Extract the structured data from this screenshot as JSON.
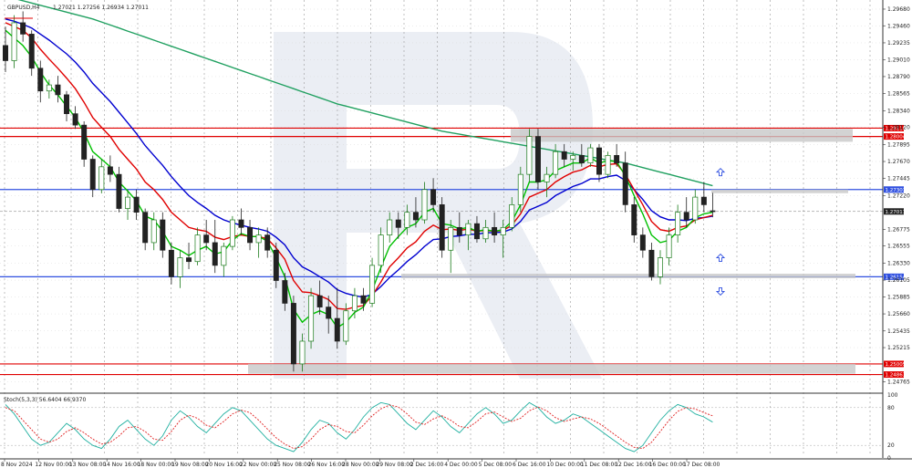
{
  "header": {
    "instrument": "GBPUSD,H4",
    "ohlc": "1.27021 1.27256 1.26934 1.27011",
    "stoch_label": "Stoch(5,3,3) 56.6404 66.9370"
  },
  "colors": {
    "bull": "#1a7a1a",
    "bear": "#222222",
    "ma_fast": "#00c000",
    "ma_mid": "#e00000",
    "ma_slow": "#0000d0",
    "ma_long": "#20a060",
    "level_red": "#e00000",
    "level_blue": "#3050e0",
    "stoch_main": "#20b0a0",
    "stoch_signal": "#e02020"
  },
  "chart_data": {
    "type": "candlestick",
    "ylim": [
      1.2465,
      1.298
    ],
    "price_ticks": [
      "1.29680",
      "1.29460",
      "1.29235",
      "1.29010",
      "1.28790",
      "1.28565",
      "1.28340",
      "1.28120",
      "1.27895",
      "1.27670",
      "1.27445",
      "1.27220",
      "1.26775",
      "1.26555",
      "1.26330",
      "1.26105",
      "1.25885",
      "1.25660",
      "1.25435",
      "1.25215",
      "1.24765"
    ],
    "price_tick_values": [
      1.2968,
      1.2946,
      1.29235,
      1.2901,
      1.2879,
      1.28565,
      1.2834,
      1.2812,
      1.27895,
      1.2767,
      1.27445,
      1.2722,
      1.26775,
      1.26555,
      1.2633,
      1.26105,
      1.25885,
      1.2566,
      1.25435,
      1.25215,
      1.24765
    ],
    "time_labels": [
      "8 Nov 2024",
      "12 Nov 00:00",
      "13 Nov 08:00",
      "14 Nov 16:00",
      "18 Nov 00:00",
      "19 Nov 08:00",
      "20 Nov 16:00",
      "22 Nov 00:00",
      "25 Nov 08:00",
      "26 Nov 16:00",
      "28 Nov 00:00",
      "29 Nov 08:00",
      "2 Dec 16:00",
      "4 Dec 00:00",
      "5 Dec 08:00",
      "6 Dec 16:00",
      "10 Dec 00:00",
      "11 Dec 08:00",
      "12 Dec 16:00",
      "16 Dec 00:00",
      "17 Dec 08:00"
    ],
    "levels": [
      {
        "value": 1.2811,
        "label": "1.28110",
        "kind": "resistance"
      },
      {
        "value": 1.28,
        "label": "1.28004",
        "kind": "resistance"
      },
      {
        "value": 1.273,
        "label": "1.27303",
        "kind": "resistance"
      },
      {
        "value": 1.2615,
        "label": "1.26154",
        "kind": "support"
      },
      {
        "value": 1.25,
        "label": "1.25005",
        "kind": "support"
      },
      {
        "value": 1.2486,
        "label": "1.24863",
        "kind": "support"
      }
    ],
    "current_price": {
      "value": 1.27011,
      "label": "1.27011"
    },
    "candles": [
      [
        1.292,
        1.2945,
        1.2885,
        1.29
      ],
      [
        1.29,
        1.296,
        1.289,
        1.295
      ],
      [
        1.295,
        1.2965,
        1.2925,
        1.2935
      ],
      [
        1.2935,
        1.294,
        1.288,
        1.289
      ],
      [
        1.289,
        1.29,
        1.2845,
        1.286
      ],
      [
        1.286,
        1.2875,
        1.285,
        1.2868
      ],
      [
        1.2868,
        1.288,
        1.2845,
        1.2855
      ],
      [
        1.2855,
        1.286,
        1.282,
        1.283
      ],
      [
        1.283,
        1.284,
        1.281,
        1.2815
      ],
      [
        1.2815,
        1.282,
        1.276,
        1.277
      ],
      [
        1.277,
        1.2775,
        1.272,
        1.273
      ],
      [
        1.273,
        1.277,
        1.2725,
        1.276
      ],
      [
        1.276,
        1.2775,
        1.274,
        1.275
      ],
      [
        1.275,
        1.276,
        1.27,
        1.2705
      ],
      [
        1.2705,
        1.273,
        1.269,
        1.272
      ],
      [
        1.272,
        1.273,
        1.269,
        1.27
      ],
      [
        1.27,
        1.2705,
        1.265,
        1.266
      ],
      [
        1.266,
        1.27,
        1.265,
        1.269
      ],
      [
        1.269,
        1.27,
        1.264,
        1.265
      ],
      [
        1.265,
        1.266,
        1.2605,
        1.2615
      ],
      [
        1.2615,
        1.265,
        1.26,
        1.264
      ],
      [
        1.264,
        1.266,
        1.2625,
        1.2635
      ],
      [
        1.2635,
        1.268,
        1.263,
        1.267
      ],
      [
        1.267,
        1.269,
        1.265,
        1.266
      ],
      [
        1.266,
        1.269,
        1.262,
        1.263
      ],
      [
        1.263,
        1.266,
        1.2615,
        1.2655
      ],
      [
        1.2655,
        1.2695,
        1.265,
        1.269
      ],
      [
        1.269,
        1.2705,
        1.267,
        1.268
      ],
      [
        1.268,
        1.269,
        1.265,
        1.266
      ],
      [
        1.266,
        1.268,
        1.264,
        1.267
      ],
      [
        1.267,
        1.268,
        1.264,
        1.265
      ],
      [
        1.265,
        1.266,
        1.26,
        1.261
      ],
      [
        1.261,
        1.262,
        1.257,
        1.258
      ],
      [
        1.258,
        1.259,
        1.249,
        1.25
      ],
      [
        1.25,
        1.254,
        1.249,
        1.253
      ],
      [
        1.253,
        1.26,
        1.252,
        1.259
      ],
      [
        1.259,
        1.261,
        1.2565,
        1.2575
      ],
      [
        1.2575,
        1.259,
        1.254,
        1.256
      ],
      [
        1.256,
        1.26,
        1.252,
        1.253
      ],
      [
        1.253,
        1.258,
        1.2525,
        1.257
      ],
      [
        1.257,
        1.26,
        1.256,
        1.259
      ],
      [
        1.259,
        1.26,
        1.257,
        1.258
      ],
      [
        1.258,
        1.264,
        1.2575,
        1.263
      ],
      [
        1.263,
        1.268,
        1.262,
        1.267
      ],
      [
        1.267,
        1.27,
        1.266,
        1.269
      ],
      [
        1.269,
        1.27,
        1.2665,
        1.268
      ],
      [
        1.268,
        1.271,
        1.267,
        1.27
      ],
      [
        1.27,
        1.272,
        1.268,
        1.269
      ],
      [
        1.269,
        1.274,
        1.2685,
        1.273
      ],
      [
        1.273,
        1.2745,
        1.27,
        1.271
      ],
      [
        1.271,
        1.272,
        1.264,
        1.265
      ],
      [
        1.265,
        1.269,
        1.262,
        1.268
      ],
      [
        1.268,
        1.27,
        1.266,
        1.267
      ],
      [
        1.267,
        1.269,
        1.265,
        1.2685
      ],
      [
        1.2685,
        1.2695,
        1.266,
        1.2665
      ],
      [
        1.2665,
        1.269,
        1.266,
        1.268
      ],
      [
        1.268,
        1.27,
        1.266,
        1.267
      ],
      [
        1.267,
        1.269,
        1.264,
        1.268
      ],
      [
        1.268,
        1.272,
        1.2675,
        1.271
      ],
      [
        1.271,
        1.276,
        1.27,
        1.275
      ],
      [
        1.275,
        1.281,
        1.274,
        1.28
      ],
      [
        1.28,
        1.281,
        1.273,
        1.274
      ],
      [
        1.274,
        1.276,
        1.272,
        1.275
      ],
      [
        1.275,
        1.279,
        1.2745,
        1.278
      ],
      [
        1.278,
        1.279,
        1.276,
        1.277
      ],
      [
        1.277,
        1.278,
        1.2755,
        1.2775
      ],
      [
        1.2775,
        1.279,
        1.276,
        1.2765
      ],
      [
        1.2765,
        1.279,
        1.276,
        1.2785
      ],
      [
        1.2785,
        1.279,
        1.274,
        1.275
      ],
      [
        1.275,
        1.278,
        1.2745,
        1.2775
      ],
      [
        1.2775,
        1.279,
        1.276,
        1.2765
      ],
      [
        1.2765,
        1.278,
        1.27,
        1.271
      ],
      [
        1.271,
        1.272,
        1.266,
        1.267
      ],
      [
        1.267,
        1.268,
        1.264,
        1.265
      ],
      [
        1.265,
        1.266,
        1.261,
        1.2615
      ],
      [
        1.2615,
        1.265,
        1.2605,
        1.264
      ],
      [
        1.264,
        1.268,
        1.263,
        1.267
      ],
      [
        1.267,
        1.271,
        1.266,
        1.27
      ],
      [
        1.27,
        1.272,
        1.268,
        1.269
      ],
      [
        1.269,
        1.273,
        1.2685,
        1.272
      ],
      [
        1.272,
        1.274,
        1.27,
        1.271
      ],
      [
        1.2702,
        1.27256,
        1.26934,
        1.27011
      ]
    ],
    "ma_fast": [
      1.294,
      1.293,
      1.292,
      1.2905,
      1.2885,
      1.2868,
      1.2855,
      1.284,
      1.2825,
      1.2805,
      1.278,
      1.277,
      1.276,
      1.274,
      1.2728,
      1.2715,
      1.2695,
      1.269,
      1.2675,
      1.2655,
      1.265,
      1.2643,
      1.265,
      1.2655,
      1.2645,
      1.2648,
      1.2663,
      1.2672,
      1.2668,
      1.2668,
      1.2662,
      1.264,
      1.2615,
      1.2572,
      1.2555,
      1.2565,
      1.257,
      1.2565,
      1.2548,
      1.2555,
      1.2568,
      1.2575,
      1.2597,
      1.2627,
      1.2655,
      1.2668,
      1.268,
      1.2685,
      1.27,
      1.2705,
      1.2685,
      1.2683,
      1.2678,
      1.268,
      1.2675,
      1.2677,
      1.2675,
      1.2677,
      1.2688,
      1.271,
      1.274,
      1.274,
      1.2743,
      1.2755,
      1.276,
      1.2765,
      1.2765,
      1.2772,
      1.2765,
      1.2768,
      1.2767,
      1.2748,
      1.2722,
      1.2698,
      1.267,
      1.266,
      1.2663,
      1.2675,
      1.268,
      1.2693,
      1.2698,
      1.27
    ],
    "ma_mid": [
      1.295,
      1.2945,
      1.294,
      1.293,
      1.2915,
      1.2902,
      1.289,
      1.2877,
      1.2863,
      1.2845,
      1.2825,
      1.2812,
      1.28,
      1.2783,
      1.277,
      1.2757,
      1.274,
      1.273,
      1.2717,
      1.27,
      1.269,
      1.268,
      1.2677,
      1.2675,
      1.2667,
      1.2664,
      1.2668,
      1.267,
      1.2668,
      1.2668,
      1.2665,
      1.2653,
      1.2638,
      1.261,
      1.2595,
      1.2594,
      1.259,
      1.2585,
      1.2573,
      1.2572,
      1.2575,
      1.2577,
      1.259,
      1.2608,
      1.2628,
      1.264,
      1.2653,
      1.2661,
      1.2675,
      1.2683,
      1.2677,
      1.2678,
      1.2676,
      1.2678,
      1.2675,
      1.2676,
      1.2675,
      1.2676,
      1.2683,
      1.2698,
      1.272,
      1.2725,
      1.273,
      1.274,
      1.2747,
      1.2753,
      1.2756,
      1.2762,
      1.276,
      1.2763,
      1.2764,
      1.275,
      1.273,
      1.271,
      1.2688,
      1.2677,
      1.2675,
      1.268,
      1.2682,
      1.269,
      1.2693,
      1.2696
    ],
    "ma_slow": [
      1.2955,
      1.2952,
      1.2948,
      1.2943,
      1.2935,
      1.2927,
      1.2918,
      1.2909,
      1.2898,
      1.2885,
      1.287,
      1.2858,
      1.2846,
      1.2832,
      1.2818,
      1.2804,
      1.2788,
      1.2775,
      1.2762,
      1.2747,
      1.2734,
      1.2722,
      1.2713,
      1.2705,
      1.2696,
      1.269,
      1.2686,
      1.2683,
      1.268,
      1.2678,
      1.2675,
      1.2667,
      1.2657,
      1.264,
      1.2628,
      1.2622,
      1.2615,
      1.2608,
      1.2598,
      1.2593,
      1.259,
      1.2588,
      1.2592,
      1.2602,
      1.2614,
      1.2624,
      1.2635,
      1.2644,
      1.2655,
      1.2664,
      1.2665,
      1.2668,
      1.2669,
      1.2671,
      1.2671,
      1.2673,
      1.2673,
      1.2674,
      1.2678,
      1.2688,
      1.2703,
      1.2708,
      1.2713,
      1.2722,
      1.2728,
      1.2734,
      1.2738,
      1.2744,
      1.2744,
      1.2747,
      1.2749,
      1.2742,
      1.273,
      1.2717,
      1.2702,
      1.2694,
      1.269,
      1.269,
      1.2689,
      1.2692,
      1.2693,
      1.2695
    ],
    "ma_long": [
      1.2985,
      1.2982,
      1.2979,
      1.2976,
      1.2973,
      1.297,
      1.2967,
      1.2964,
      1.2961,
      1.2958,
      1.2955,
      1.2951,
      1.2947,
      1.2943,
      1.2939,
      1.2935,
      1.2931,
      1.2927,
      1.2923,
      1.2919,
      1.2915,
      1.2911,
      1.2907,
      1.2903,
      1.2899,
      1.2895,
      1.2891,
      1.2887,
      1.2883,
      1.2879,
      1.2875,
      1.2871,
      1.2867,
      1.2863,
      1.2859,
      1.2855,
      1.2851,
      1.2847,
      1.2843,
      1.284,
      1.2837,
      1.2834,
      1.2831,
      1.2828,
      1.2825,
      1.2822,
      1.2819,
      1.2816,
      1.2813,
      1.281,
      1.2807,
      1.2805,
      1.2803,
      1.2801,
      1.2799,
      1.2797,
      1.2795,
      1.2793,
      1.2791,
      1.2789,
      1.2787,
      1.2785,
      1.2783,
      1.2781,
      1.2779,
      1.2777,
      1.2775,
      1.2773,
      1.2771,
      1.2769,
      1.2767,
      1.2765,
      1.2762,
      1.2759,
      1.2756,
      1.2753,
      1.275,
      1.2747,
      1.2744,
      1.2741,
      1.2738,
      1.2735
    ],
    "stoch": {
      "levels": [
        "100",
        "80",
        "20",
        "0"
      ],
      "level_values": [
        100,
        80,
        20,
        0
      ],
      "main": [
        85,
        70,
        50,
        30,
        20,
        25,
        40,
        55,
        45,
        30,
        20,
        15,
        30,
        50,
        60,
        45,
        30,
        20,
        35,
        60,
        75,
        65,
        50,
        40,
        55,
        70,
        80,
        75,
        60,
        45,
        30,
        20,
        15,
        10,
        25,
        45,
        60,
        55,
        40,
        30,
        45,
        65,
        80,
        88,
        85,
        70,
        55,
        45,
        60,
        75,
        65,
        50,
        40,
        55,
        70,
        80,
        70,
        55,
        60,
        75,
        88,
        80,
        65,
        55,
        60,
        70,
        65,
        55,
        45,
        35,
        25,
        15,
        10,
        20,
        40,
        60,
        75,
        85,
        80,
        70,
        65,
        57
      ],
      "signal": [
        80,
        75,
        60,
        45,
        30,
        25,
        30,
        42,
        48,
        40,
        30,
        22,
        25,
        35,
        48,
        50,
        42,
        30,
        28,
        42,
        60,
        68,
        63,
        52,
        48,
        58,
        70,
        76,
        72,
        60,
        46,
        32,
        22,
        15,
        18,
        30,
        45,
        53,
        50,
        42,
        40,
        52,
        67,
        78,
        84,
        81,
        70,
        57,
        53,
        62,
        67,
        60,
        50,
        48,
        58,
        70,
        73,
        65,
        58,
        63,
        75,
        81,
        75,
        64,
        58,
        62,
        65,
        62,
        55,
        45,
        35,
        25,
        17,
        15,
        25,
        42,
        60,
        74,
        80,
        78,
        72,
        67
      ]
    }
  }
}
